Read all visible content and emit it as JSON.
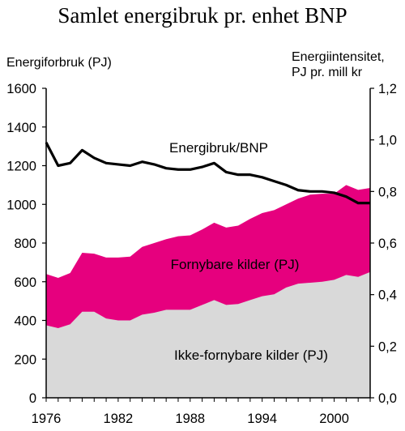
{
  "chart_data": {
    "type": "area",
    "title": "Samlet energibruk pr. enhet BNP",
    "ylabel_left": "Energiforbruk (PJ)",
    "ylabel_right_line1": "Energiintensitet,",
    "ylabel_right_line2": "PJ pr. mill kr",
    "ylim_left": [
      0,
      1600
    ],
    "ylim_right": [
      0,
      1.2
    ],
    "xlim": [
      1976,
      2003
    ],
    "x_ticks": [
      "1976",
      "1982",
      "1988",
      "1994",
      "2000"
    ],
    "x_tick_values": [
      1976,
      1982,
      1988,
      1994,
      2000
    ],
    "yticks_left": [
      "0",
      "200",
      "400",
      "600",
      "800",
      "1000",
      "1200",
      "1400",
      "1600"
    ],
    "yticks_left_values": [
      0,
      200,
      400,
      600,
      800,
      1000,
      1200,
      1400,
      1600
    ],
    "yticks_right": [
      "0,0",
      "0,2",
      "0,4",
      "0,6",
      "0,8",
      "1,0",
      "1,2"
    ],
    "yticks_right_values": [
      0,
      0.2,
      0.4,
      0.6,
      0.8,
      1.0,
      1.2
    ],
    "years": [
      1976,
      1977,
      1978,
      1979,
      1980,
      1981,
      1982,
      1983,
      1984,
      1985,
      1986,
      1987,
      1988,
      1989,
      1990,
      1991,
      1992,
      1993,
      1994,
      1995,
      1996,
      1997,
      1998,
      1999,
      2000,
      2001,
      2002,
      2003
    ],
    "series": [
      {
        "name": "Ikke-fornybare kilder (PJ)",
        "kind": "area",
        "color": "#d9d9d9",
        "values": [
          375,
          360,
          380,
          445,
          445,
          410,
          400,
          400,
          430,
          440,
          455,
          455,
          455,
          480,
          505,
          480,
          485,
          505,
          525,
          535,
          570,
          590,
          595,
          600,
          610,
          635,
          625,
          650
        ]
      },
      {
        "name": "Fornybare kilder (PJ)",
        "kind": "area",
        "color": "#e6007e",
        "values": [
          640,
          620,
          645,
          750,
          745,
          725,
          725,
          730,
          780,
          800,
          820,
          835,
          840,
          870,
          905,
          880,
          890,
          925,
          955,
          970,
          1000,
          1030,
          1050,
          1055,
          1055,
          1100,
          1075,
          1085
        ]
      },
      {
        "name": "Energibruk/BNP",
        "kind": "line",
        "color": "#000000",
        "axis": "right",
        "values": [
          0.99,
          0.9,
          0.91,
          0.96,
          0.93,
          0.91,
          0.905,
          0.9,
          0.915,
          0.905,
          0.89,
          0.885,
          0.885,
          0.895,
          0.91,
          0.875,
          0.865,
          0.865,
          0.855,
          0.84,
          0.825,
          0.805,
          0.8,
          0.8,
          0.795,
          0.78,
          0.755,
          0.755
        ]
      }
    ]
  }
}
